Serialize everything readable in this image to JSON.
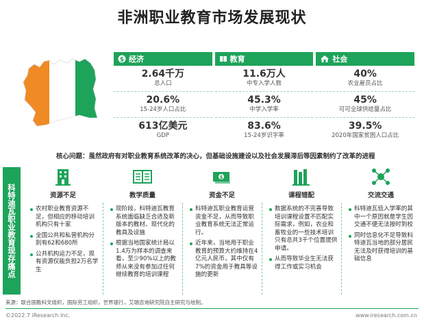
{
  "title": "非洲职业教育市场发展现状",
  "colors": {
    "green": "#1ea35a",
    "orange": "#f08a24",
    "white": "#ffffff"
  },
  "grid": {
    "headers": [
      {
        "label": "经济",
        "icon": "dollar-icon"
      },
      {
        "label": "教育",
        "icon": "book-icon"
      },
      {
        "label": "社会",
        "icon": "house-icon"
      }
    ],
    "columns": [
      [
        {
          "num": "2.64千万",
          "lbl": "总人口"
        },
        {
          "num": "20.6%",
          "lbl": "15-24岁人口占比"
        },
        {
          "num": "613亿美元",
          "lbl": "GDP"
        }
      ],
      [
        {
          "num": "11.6万人",
          "lbl": "中专入学人数"
        },
        {
          "num": "45.3%",
          "lbl": "中学入学率"
        },
        {
          "num": "83.6%",
          "lbl": "15-24岁识字率"
        }
      ],
      [
        {
          "num": "40%",
          "lbl": "农业雇员占比"
        },
        {
          "num": "45%",
          "lbl": "可可全球供给量占比"
        },
        {
          "num": "39.5%",
          "lbl": "2020年国家贫困人口占比"
        }
      ]
    ]
  },
  "core": "核心问题：虽然政府有对职业教育系统改革的决心，但基础设施建设以及社会发展滞后等因素制约了改革的进程",
  "side_label": "科特迪瓦职业教育现存痛点",
  "pain_points": [
    {
      "title": "资源不足",
      "icon": "building-icon",
      "bullets": [
        "农村职业教育资源不足，但相应的移动培训机构只有十家",
        "全国公共和私营机构分别有62和680所",
        "公共机构运力不足，现有资源仅能负担2万名学生"
      ]
    },
    {
      "title": "教学质量",
      "icon": "open-book-icon",
      "bullets": [
        "现阶段，科特迪瓦教育系统面临缺乏合适及新版本的教材、现代化的教具及设施",
        "根据当地国家统计局以1.4万为样本的调查来看，至少90%以上的教师从来没有参加过任何继续教育的培训课程"
      ]
    },
    {
      "title": "资金不足",
      "icon": "money-icon",
      "bullets": [
        "科特迪瓦职业教育运营资金不足，从而导致职业教育系统无法正常运行。",
        "近年来，当地用于职业教育的预算大约维持在4亿元人民币，其中仅有7%的资金用于教具等设施的更新"
      ]
    },
    {
      "title": "课程错配",
      "icon": "books-icon",
      "bullets": [
        "数据系统的不完善导致培训课程设置不匹配实际需求，例如，农业和畜牧业的一些技术培训只有总共3千个位置提供申请。",
        "从而导致毕业生无法获得工作或实习机会"
      ]
    },
    {
      "title": "交流交通",
      "icon": "network-icon",
      "bullets": [
        "科特迪瓦低入学率的其中一个原因就是学生因交通不便无法按时到校",
        "同时信息化不足导致科特迪瓦当地的部分居民无法及时获得培训的基础信息"
      ]
    }
  ],
  "source": "来源：联合国教科文组织，国际劳工组织，世界银行，艾瑞咨询研究院自主研究与绘制。",
  "copyright": "©2022.7 iResearch Inc.",
  "website": "www.iresearch.com.cn"
}
